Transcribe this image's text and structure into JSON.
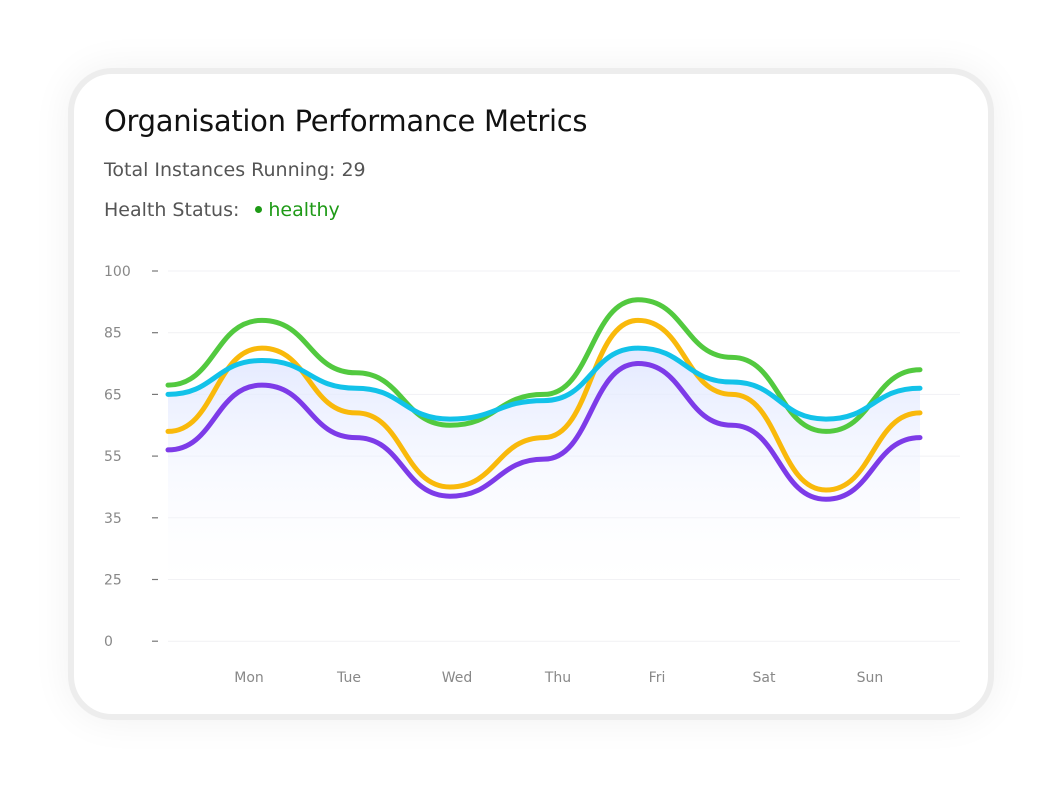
{
  "header": {
    "title": "Organisation Performance Metrics",
    "instances_label": "Total Instances Running: 29",
    "health_label": "Health Status:",
    "health_value": "healthy",
    "health_color": "#1e9a16"
  },
  "chart_data": {
    "type": "line",
    "title": "Organisation Performance Metrics",
    "xlabel": "",
    "ylabel": "",
    "y_ticks": [
      "100",
      "85",
      "65",
      "55",
      "35",
      "25",
      "0"
    ],
    "x_ticks": [
      "Mon",
      "Tue",
      "Wed",
      "Thu",
      "Fri",
      "Sat",
      "Sun"
    ],
    "ylim": [
      0,
      100
    ],
    "grid": true,
    "series": [
      {
        "name": "green",
        "color": "#52c93f",
        "values": [
          68,
          88,
          72,
          60,
          65,
          93,
          77,
          59,
          73
        ]
      },
      {
        "name": "yellow",
        "color": "#f9b90b",
        "values": [
          59,
          80,
          62,
          45,
          58,
          88,
          65,
          44,
          62
        ]
      },
      {
        "name": "cyan",
        "color": "#12c2e9",
        "values": [
          65,
          76,
          67,
          61,
          64,
          80,
          69,
          61,
          67
        ],
        "area_fill": true
      },
      {
        "name": "purple",
        "color": "#7d3be8",
        "values": [
          56,
          68,
          58,
          42,
          54,
          75,
          60,
          41,
          58
        ]
      }
    ]
  }
}
